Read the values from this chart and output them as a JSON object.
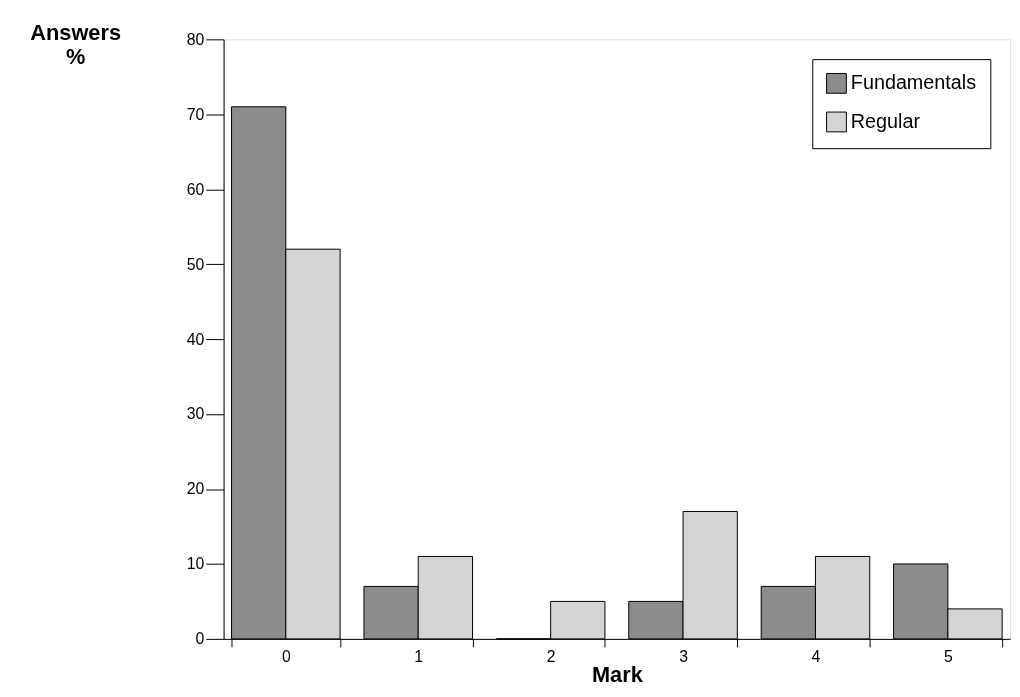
{
  "chart_data": {
    "type": "bar",
    "xlabel": "Mark",
    "ylabel": "Answers %",
    "categories": [
      "0",
      "1",
      "2",
      "3",
      "4",
      "5"
    ],
    "series": [
      {
        "name": "Fundamentals",
        "color": "#8c8c8c",
        "values": [
          71,
          7,
          0,
          5,
          7,
          10
        ]
      },
      {
        "name": "Regular",
        "color": "#d4d4d4",
        "values": [
          52,
          11,
          5,
          17,
          11,
          4
        ]
      }
    ],
    "ylim": [
      0,
      80
    ],
    "yticks": [
      0,
      10,
      20,
      30,
      40,
      50,
      60,
      70,
      80
    ],
    "grid": false,
    "legend": "top right"
  }
}
